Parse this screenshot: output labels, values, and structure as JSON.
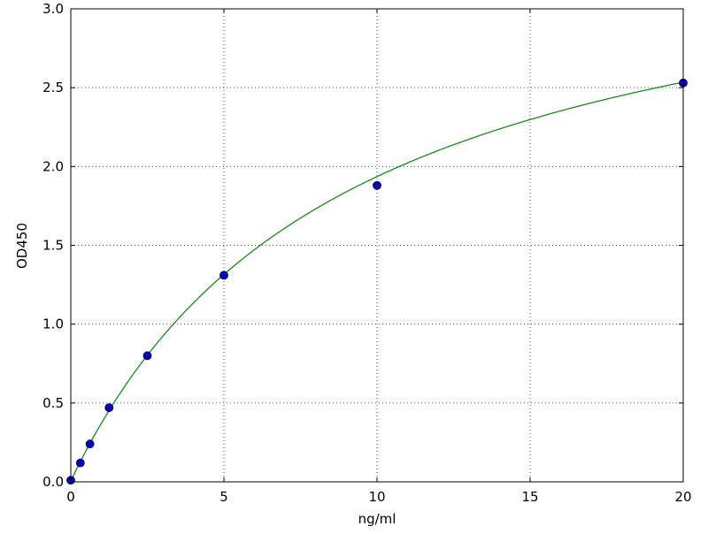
{
  "chart_data": {
    "type": "scatter",
    "title": "",
    "xlabel": "ng/ml",
    "ylabel": "OD450",
    "xlim": [
      0,
      20
    ],
    "ylim": [
      0,
      3.0
    ],
    "xticks": [
      "0",
      "5",
      "10",
      "15",
      "20"
    ],
    "yticks": [
      "0.0",
      "0.5",
      "1.0",
      "1.5",
      "2.0",
      "2.5",
      "3.0"
    ],
    "grid": true,
    "points": {
      "x": [
        0,
        0.3125,
        0.625,
        1.25,
        2.5,
        5,
        10,
        20
      ],
      "y": [
        0.01,
        0.12,
        0.24,
        0.47,
        0.8,
        1.31,
        1.88,
        2.53
      ]
    },
    "colors": {
      "points": "#0000bf",
      "curve": "#1a8a1a",
      "grid": "#555555"
    }
  }
}
